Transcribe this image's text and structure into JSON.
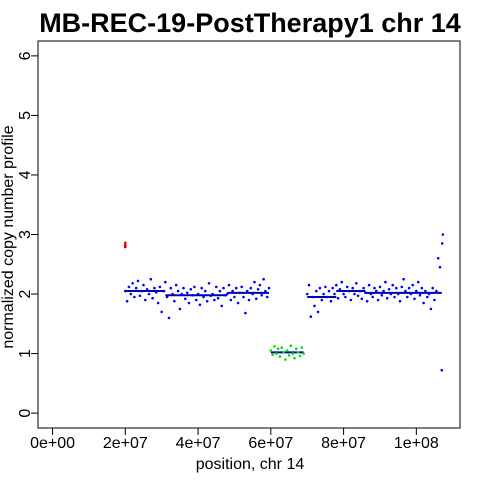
{
  "chart_data": {
    "type": "scatter",
    "title": "MB-REC-19-PostTherapy1 chr 14",
    "xlabel": "position, chr 14",
    "ylabel": "normalized copy number profile",
    "xlim": [
      -4000000,
      112000000
    ],
    "ylim": [
      -0.25,
      6.25
    ],
    "x_ticks": [
      {
        "value": 0,
        "label": "0e+00"
      },
      {
        "value": 20000000,
        "label": "2e+07"
      },
      {
        "value": 40000000,
        "label": "4e+07"
      },
      {
        "value": 60000000,
        "label": "6e+07"
      },
      {
        "value": 80000000,
        "label": "8e+07"
      },
      {
        "value": 100000000,
        "label": "1e+08"
      }
    ],
    "y_ticks": [
      {
        "value": 0,
        "label": "0"
      },
      {
        "value": 1,
        "label": "1"
      },
      {
        "value": 2,
        "label": "2"
      },
      {
        "value": 3,
        "label": "3"
      },
      {
        "value": 4,
        "label": "4"
      },
      {
        "value": 5,
        "label": "5"
      },
      {
        "value": 6,
        "label": "6"
      }
    ],
    "colors": {
      "normal": "#0000ff",
      "loss": "#00dd00",
      "gain": "#cc0000",
      "segment": "#0000aa"
    },
    "series": [
      {
        "color": "normal",
        "x": [
          20000000,
          20500000,
          21000000,
          21500000,
          22000000,
          22500000,
          23000000,
          23500000,
          24000000,
          24500000,
          25000000,
          25500000,
          26000000,
          26500000,
          27000000,
          27500000,
          28000000,
          28500000,
          29000000,
          29500000,
          30000000,
          30500000,
          31000000,
          31500000,
          32000000,
          32500000,
          33000000,
          33500000,
          34000000,
          34500000,
          35000000,
          35500000,
          36000000,
          36500000,
          37000000,
          37500000,
          38000000,
          38500000,
          39000000,
          39500000,
          40000000,
          40500000,
          41000000,
          41500000,
          42000000,
          42500000,
          43000000,
          43500000,
          44000000,
          44500000,
          45000000,
          45500000,
          46000000,
          46500000,
          47000000,
          47500000,
          48000000,
          48500000,
          49000000,
          49500000,
          50000000,
          50500000,
          51000000,
          51500000,
          52000000,
          52500000,
          53000000,
          53500000,
          54000000,
          54500000,
          55000000,
          55500000,
          56000000,
          56500000,
          57000000,
          57500000,
          58000000,
          58500000,
          59000000,
          59500000
        ],
        "y": [
          2.05,
          1.88,
          2.12,
          2.0,
          2.18,
          1.95,
          2.1,
          2.22,
          1.97,
          2.05,
          2.15,
          1.9,
          2.08,
          2.0,
          2.25,
          1.93,
          2.1,
          2.03,
          1.85,
          2.12,
          1.7,
          2.05,
          2.2,
          1.95,
          1.6,
          2.1,
          2.0,
          1.88,
          2.15,
          2.05,
          1.75,
          2.0,
          2.1,
          1.92,
          2.02,
          1.85,
          2.08,
          1.98,
          2.12,
          1.9,
          2.0,
          1.82,
          2.1,
          1.95,
          2.05,
          1.88,
          2.18,
          1.97,
          2.0,
          1.9,
          2.12,
          1.93,
          2.05,
          1.8,
          2.1,
          1.98,
          2.0,
          2.15,
          1.9,
          2.05,
          1.95,
          2.1,
          1.85,
          2.02,
          2.12,
          1.95,
          1.68,
          2.05,
          1.9,
          2.1,
          2.0,
          2.2,
          1.92,
          2.08,
          2.15,
          1.98,
          2.25,
          2.05,
          1.95,
          2.1
        ]
      },
      {
        "color": "loss",
        "x": [
          60000000,
          60500000,
          61000000,
          61500000,
          62000000,
          62500000,
          63000000,
          63500000,
          64000000,
          64500000,
          65000000,
          65500000,
          66000000,
          66500000,
          67000000,
          67500000,
          68000000,
          68500000,
          69000000
        ],
        "y": [
          1.05,
          0.98,
          1.12,
          1.0,
          1.08,
          0.95,
          1.1,
          1.02,
          0.9,
          1.05,
          0.97,
          1.13,
          1.0,
          0.92,
          1.08,
          1.02,
          0.96,
          1.1,
          1.0
        ]
      },
      {
        "color": "normal",
        "x": [
          70000000,
          70500000,
          71000000,
          71500000,
          72000000,
          72500000,
          73000000,
          73500000,
          74000000,
          74500000,
          75000000,
          75500000,
          76000000,
          76500000,
          77000000,
          77500000,
          78000000,
          78500000,
          79000000,
          79500000,
          80000000,
          80500000,
          81000000,
          81500000,
          82000000,
          82500000,
          83000000,
          83500000,
          84000000,
          84500000,
          85000000,
          85500000,
          86000000,
          86500000,
          87000000,
          87500000,
          88000000,
          88500000,
          89000000,
          89500000,
          90000000,
          90500000,
          91000000,
          91500000,
          92000000,
          92500000,
          93000000,
          93500000,
          94000000,
          94500000,
          95000000,
          95500000,
          96000000,
          96500000,
          97000000,
          97500000,
          98000000,
          98500000,
          99000000,
          99500000,
          100000000,
          100500000,
          101000000,
          101500000,
          102000000,
          102500000,
          103000000,
          103500000,
          104000000,
          104500000,
          105000000,
          105500000,
          106000000,
          106500000,
          107000000,
          107300000,
          107100000
        ],
        "y": [
          2.0,
          2.15,
          1.62,
          1.95,
          1.8,
          2.05,
          1.7,
          2.1,
          1.9,
          2.0,
          2.12,
          1.95,
          2.05,
          1.88,
          2.1,
          2.0,
          2.15,
          1.93,
          2.08,
          2.2,
          2.0,
          1.95,
          2.12,
          2.05,
          1.9,
          2.1,
          2.0,
          2.18,
          1.97,
          2.05,
          1.92,
          2.1,
          2.02,
          1.88,
          2.15,
          2.0,
          1.95,
          2.1,
          2.05,
          1.9,
          2.12,
          1.98,
          2.05,
          2.2,
          1.93,
          2.08,
          2.0,
          2.15,
          1.95,
          2.1,
          2.0,
          1.88,
          2.12,
          2.25,
          2.05,
          1.95,
          2.1,
          2.0,
          2.15,
          1.92,
          2.05,
          2.2,
          1.98,
          2.1,
          1.85,
          2.05,
          1.95,
          2.0,
          1.75,
          2.1,
          1.9,
          2.05,
          2.6,
          2.45,
          0.72,
          3.0,
          2.85
        ]
      },
      {
        "color": "gain",
        "x": [
          20000000,
          20000000,
          20000000
        ],
        "y": [
          2.82,
          2.86,
          2.79
        ]
      }
    ],
    "segments": [
      {
        "x0": 20000000,
        "x1": 31000000,
        "y": 2.05
      },
      {
        "x0": 31000000,
        "x1": 48000000,
        "y": 1.98
      },
      {
        "x0": 48000000,
        "x1": 59500000,
        "y": 2.02
      },
      {
        "x0": 60000000,
        "x1": 69000000,
        "y": 1.02
      },
      {
        "x0": 70000000,
        "x1": 78000000,
        "y": 1.95
      },
      {
        "x0": 78000000,
        "x1": 86000000,
        "y": 2.05
      },
      {
        "x0": 86000000,
        "x1": 107000000,
        "y": 2.02
      }
    ],
    "grid": false,
    "legend": "none"
  }
}
